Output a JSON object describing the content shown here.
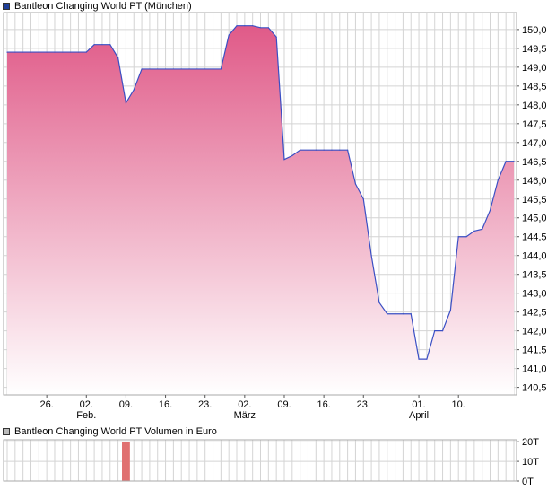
{
  "price_chart": {
    "legend": "Bantleon Changing World PT (München)",
    "legend_color": "#1f3f99"
  },
  "volume_chart": {
    "legend": "Bantleon Changing World PT Volumen in Euro",
    "legend_color": "#bbbbbb"
  },
  "colors": {
    "line": "#3a4fc4",
    "area_top": "#e05a88",
    "area_bottom": "#ffffff",
    "volume_bar": "#e07070",
    "grid": "#d4d4d4",
    "frame": "#aaaaaa"
  },
  "chart_data": [
    {
      "type": "area",
      "series": [
        {
          "values": [
            149.4,
            149.4,
            149.4,
            149.4,
            149.4,
            149.4,
            149.4,
            149.4,
            149.4,
            149.4,
            149.4,
            149.6,
            149.6,
            149.6,
            149.25,
            148.05,
            148.4,
            148.95,
            148.95,
            148.95,
            148.95,
            148.95,
            148.95,
            148.95,
            148.95,
            148.95,
            148.95,
            148.95,
            149.85,
            150.1,
            150.1,
            150.1,
            150.05,
            150.05,
            149.8,
            146.55,
            146.65,
            146.8,
            146.8,
            146.8,
            146.8,
            146.8,
            146.8,
            146.8,
            145.9,
            145.5,
            144.0,
            142.75,
            142.45,
            142.45,
            142.45,
            142.45,
            141.25,
            141.25,
            142.0,
            142.0,
            142.55,
            144.5,
            144.5,
            144.65,
            144.7,
            145.2,
            146.0,
            146.5,
            146.5
          ]
        }
      ],
      "x_ticks": [
        {
          "index": 5,
          "label": "26.",
          "sub": ""
        },
        {
          "index": 10,
          "label": "02.",
          "sub": "Feb."
        },
        {
          "index": 15,
          "label": "09.",
          "sub": ""
        },
        {
          "index": 20,
          "label": "16.",
          "sub": ""
        },
        {
          "index": 25,
          "label": "23.",
          "sub": ""
        },
        {
          "index": 30,
          "label": "02.",
          "sub": "März"
        },
        {
          "index": 35,
          "label": "09.",
          "sub": ""
        },
        {
          "index": 40,
          "label": "16.",
          "sub": ""
        },
        {
          "index": 45,
          "label": "23.",
          "sub": ""
        },
        {
          "index": 52,
          "label": "01.",
          "sub": "April"
        },
        {
          "index": 57,
          "label": "10.",
          "sub": ""
        }
      ],
      "y_ticks": [
        "140,5",
        "141,0",
        "141,5",
        "142,0",
        "142,5",
        "143,0",
        "143,5",
        "144,0",
        "144,5",
        "145,0",
        "145,5",
        "146,0",
        "146,5",
        "147,0",
        "147,5",
        "148,0",
        "148,5",
        "149,0",
        "149,5",
        "150,0"
      ],
      "y_tick_values": [
        140.5,
        141.0,
        141.5,
        142.0,
        142.5,
        143.0,
        143.5,
        144.0,
        144.5,
        145.0,
        145.5,
        146.0,
        146.5,
        147.0,
        147.5,
        148.0,
        148.5,
        149.0,
        149.5,
        150.0
      ],
      "ylim": [
        140.3,
        150.45
      ],
      "grid": true
    },
    {
      "type": "bar",
      "series": [
        {
          "values": [
            {
              "index": 15,
              "value": 20000
            }
          ]
        }
      ],
      "y_ticks": [
        "0T",
        "10T",
        "20T"
      ],
      "y_tick_values": [
        0,
        10000,
        20000
      ],
      "ylim": [
        0,
        21000
      ],
      "grid": true
    }
  ]
}
